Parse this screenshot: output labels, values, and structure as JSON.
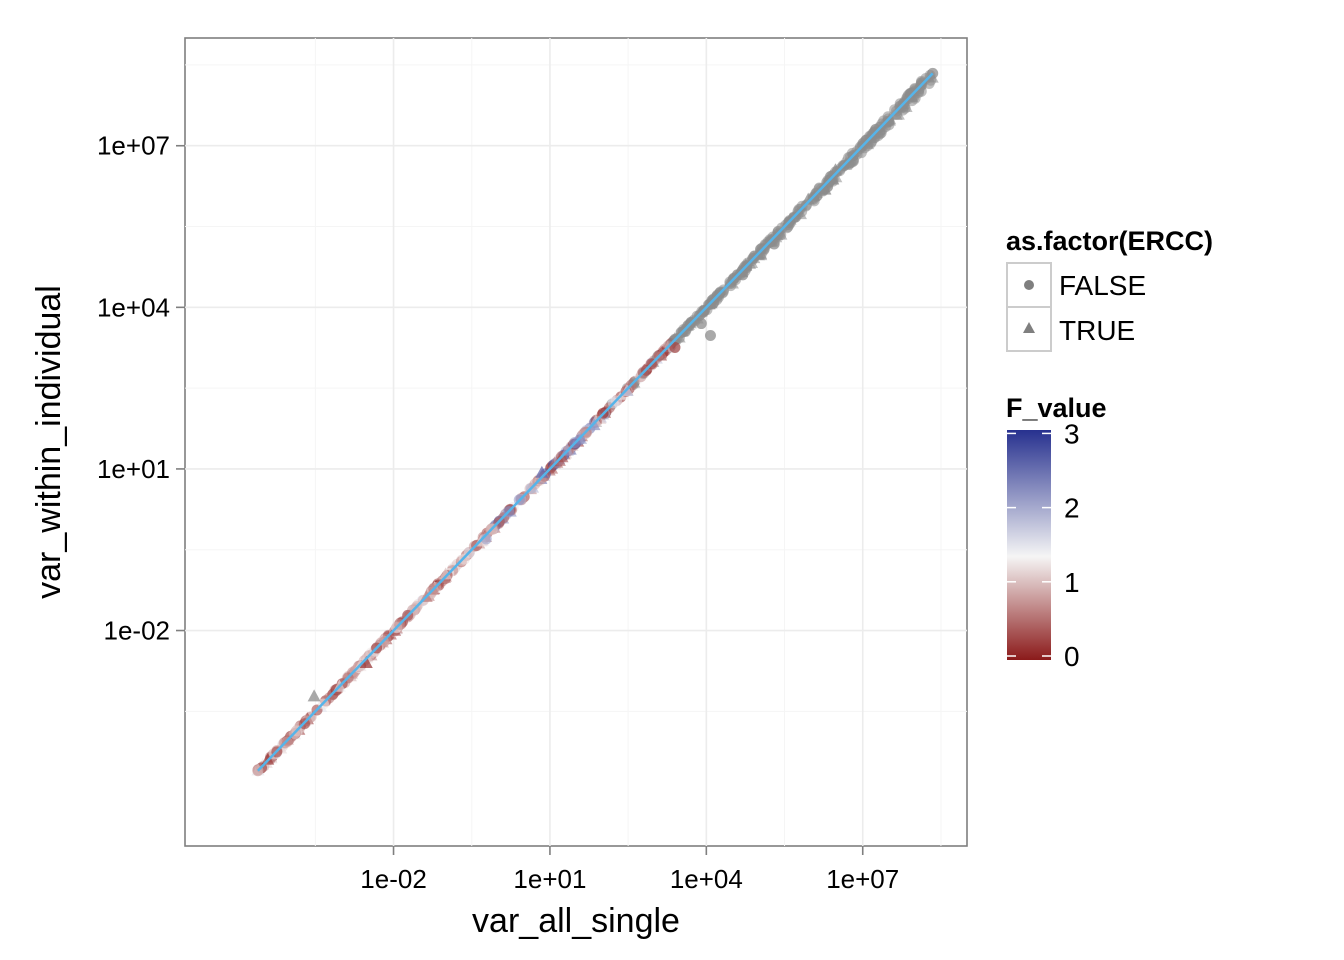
{
  "chart_data": {
    "type": "scatter",
    "title": "",
    "xlabel": "var_all_single",
    "ylabel": "var_within_individual",
    "x_scale": "log10",
    "y_scale": "log10",
    "xlim": [
      1e-06,
      1000000000.0
    ],
    "ylim": [
      1e-06,
      1000000000.0
    ],
    "x_ticks": [
      {
        "value": 0.01,
        "label": "1e-02"
      },
      {
        "value": 10,
        "label": "1e+01"
      },
      {
        "value": 10000,
        "label": "1e+04"
      },
      {
        "value": 10000000,
        "label": "1e+07"
      }
    ],
    "y_ticks": [
      {
        "value": 0.01,
        "label": "1e-02"
      },
      {
        "value": 10,
        "label": "1e+01"
      },
      {
        "value": 10000,
        "label": "1e+04"
      },
      {
        "value": 10000000,
        "label": "1e+07"
      }
    ],
    "grid": true,
    "panel_background": "#ffffff",
    "fit_line": {
      "color": "#56B4E9",
      "from": [
        2.5e-05,
        2.5e-05
      ],
      "to": [
        220000000,
        220000000
      ]
    },
    "shape_legend": {
      "title": "as.factor(ERCC)",
      "entries": [
        {
          "label": "FALSE",
          "shape": "circle"
        },
        {
          "label": "TRUE",
          "shape": "triangle"
        }
      ]
    },
    "color_legend": {
      "title": "F_value",
      "ticks": [
        {
          "value": 0,
          "label": "0"
        },
        {
          "value": 1,
          "label": "1"
        },
        {
          "value": 2,
          "label": "2"
        },
        {
          "value": 3,
          "label": "3"
        }
      ],
      "range": [
        0,
        3.1
      ],
      "colors": {
        "low": "#8B1A1A",
        "mid": "#F5F5F5",
        "high": "#27318F"
      },
      "midpoint": 1.4
    },
    "points_description": "~thousands of points lying along the diagonal y = x from 2.5e-5 to 2.2e8; many red/pink low F_value points in the lower range, blue high F_value points near 1-100, gray (NA) points in upper range",
    "sample_points": [
      {
        "x": 2.5e-05,
        "y": 2.5e-05,
        "shape": "circle",
        "f": 0.9
      },
      {
        "x": 0.0003,
        "y": 0.0006,
        "shape": "triangle",
        "f": null
      },
      {
        "x": 0.003,
        "y": 0.0025,
        "shape": "triangle",
        "f": 0.2
      },
      {
        "x": 0.1,
        "y": 0.11,
        "shape": "triangle",
        "f": 1.1
      },
      {
        "x": 0.6,
        "y": 0.5,
        "shape": "circle",
        "f": 2.0
      },
      {
        "x": 7,
        "y": 8.5,
        "shape": "triangle",
        "f": 2.6
      },
      {
        "x": 70,
        "y": 65,
        "shape": "triangle",
        "f": 2.2
      },
      {
        "x": 300,
        "y": 280,
        "shape": "triangle",
        "f": 1.8
      },
      {
        "x": 2500,
        "y": 1800,
        "shape": "circle",
        "f": 0.3
      },
      {
        "x": 8000,
        "y": 5000,
        "shape": "circle",
        "f": null
      },
      {
        "x": 12000,
        "y": 3000,
        "shape": "circle",
        "f": null
      },
      {
        "x": 50000,
        "y": 40000,
        "shape": "circle",
        "f": null
      },
      {
        "x": 200000,
        "y": 150000,
        "shape": "circle",
        "f": null
      },
      {
        "x": 900000,
        "y": 1000000,
        "shape": "triangle",
        "f": null
      },
      {
        "x": 3000000,
        "y": 3500000,
        "shape": "triangle",
        "f": null
      },
      {
        "x": 10000000,
        "y": 10000000,
        "shape": "circle",
        "f": null
      },
      {
        "x": 60000000,
        "y": 60000000,
        "shape": "circle",
        "f": null
      },
      {
        "x": 220000000,
        "y": 220000000,
        "shape": "circle",
        "f": null
      }
    ]
  }
}
